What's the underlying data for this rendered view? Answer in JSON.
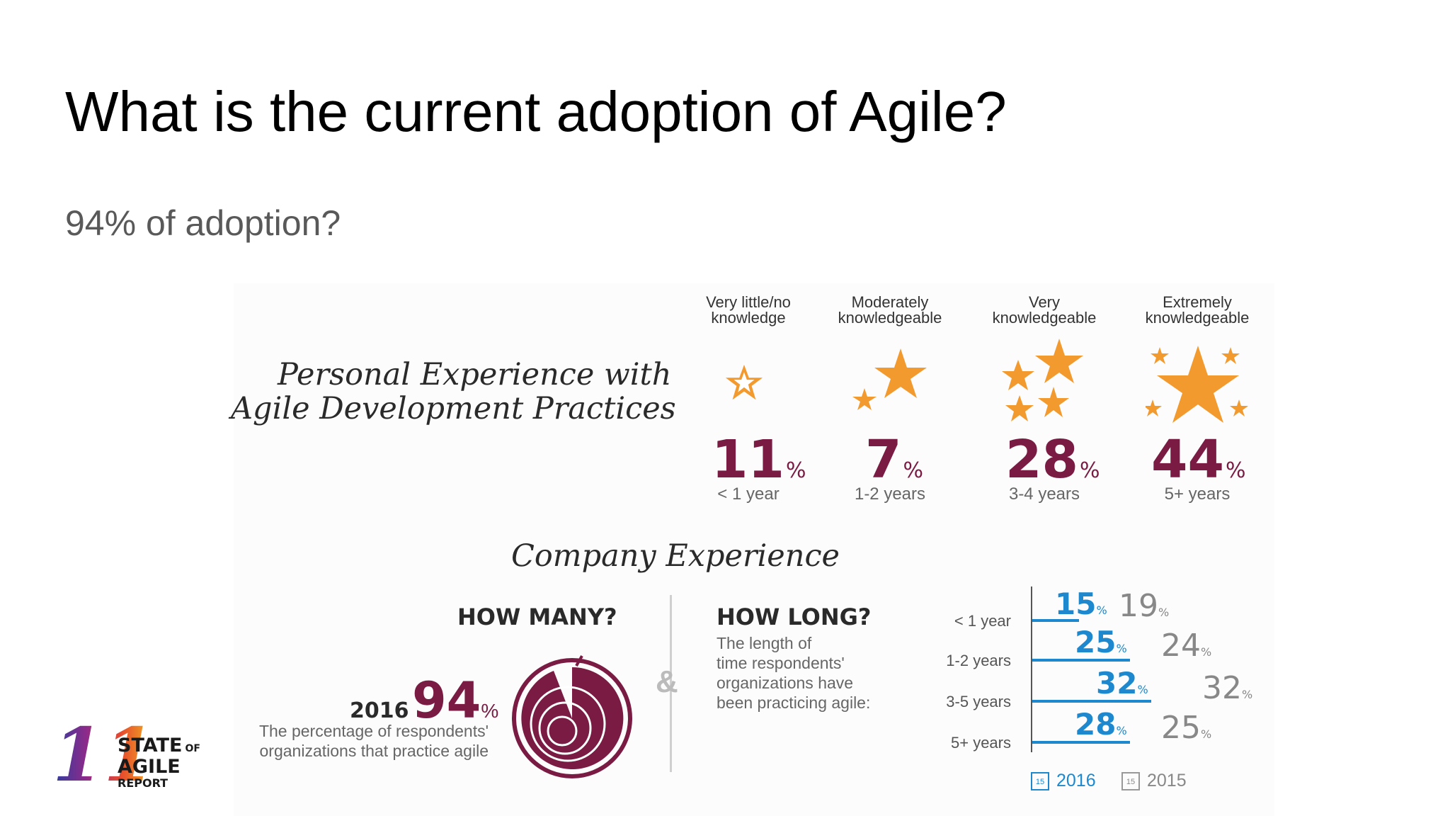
{
  "slide": {
    "title": "What is the current adoption of Agile?",
    "subtitle": "94% of adoption?"
  },
  "personal": {
    "heading_line1": "Personal Experience with",
    "heading_line2": "Agile Development Practices",
    "levels": [
      {
        "label1": "Very little/no",
        "label2": "knowledge",
        "value": "11",
        "unit": "%",
        "years": "< 1 year"
      },
      {
        "label1": "Moderately",
        "label2": "knowledgeable",
        "value": "7",
        "unit": "%",
        "years": "1-2 years"
      },
      {
        "label1": "Very",
        "label2": "knowledgeable",
        "value": "28",
        "unit": "%",
        "years": "3-4 years"
      },
      {
        "label1": "Extremely",
        "label2": "knowledgeable",
        "value": "44",
        "unit": "%",
        "years": "5+ years"
      }
    ]
  },
  "company": {
    "heading": "Company Experience",
    "how_many": {
      "title": "HOW MANY?",
      "year": "2016",
      "value": "94",
      "unit": "%",
      "desc_line1": "The percentage of respondents'",
      "desc_line2": "organizations that practice agile"
    },
    "ampersand": "&",
    "how_long": {
      "title": "HOW LONG?",
      "desc_lines": [
        "The length of",
        "time respondents'",
        "organizations have",
        "been practicing agile:"
      ],
      "rows": [
        {
          "label": "< 1 year",
          "v2016": "15",
          "v2015": "19",
          "unit": "%"
        },
        {
          "label": "1-2 years",
          "v2016": "25",
          "v2015": "24",
          "unit": "%"
        },
        {
          "label": "3-5 years",
          "v2016": "32",
          "v2015": "32",
          "unit": "%"
        },
        {
          "label": "5+ years",
          "v2016": "28",
          "v2015": "25",
          "unit": "%"
        }
      ],
      "legend_2016": "2016",
      "legend_2015": "2015",
      "calendar_badge": "15"
    }
  },
  "logo": {
    "number": "11",
    "line1": "STATE",
    "line1b": "OF",
    "line2": "AGILE",
    "line3": "REPORT"
  },
  "colors": {
    "star": "#f39a2f",
    "maroon": "#7a1b43",
    "blue": "#1e88cf",
    "grey": "#888888"
  }
}
